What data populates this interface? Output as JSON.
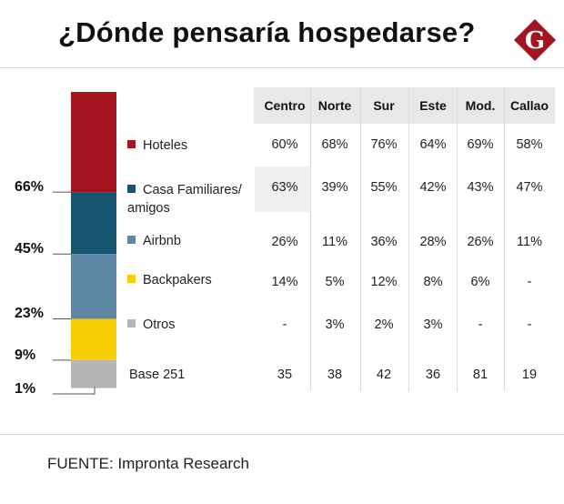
{
  "title": "¿Dónde pensaría hospedarse?",
  "logo_letter": "G",
  "source": "FUENTE: Impronta Research",
  "colors": {
    "hoteles": "#a3161f",
    "casa": "#165470",
    "airbnb": "#5e87a4",
    "backpakers": "#f7cd05",
    "otros": "#b5b5b5",
    "logo": "#a3161f"
  },
  "chart_data": {
    "type": "stacked-bar-with-table",
    "title": "¿Dónde pensaría hospedarse?",
    "stack": [
      {
        "name": "Hoteles",
        "value": 66,
        "color": "#a3161f"
      },
      {
        "name": "Casa Familiares/ amigos",
        "value": 45,
        "color": "#165470"
      },
      {
        "name": "Airbnb",
        "value": 23,
        "color": "#5e87a4"
      },
      {
        "name": "Backpakers",
        "value": 9,
        "color": "#f7cd05"
      },
      {
        "name": "Otros",
        "value": 1,
        "color": "#b5b5b5"
      }
    ],
    "stack_labels": [
      "66%",
      "45%",
      "23%",
      "9%",
      "1%"
    ],
    "legend": [
      {
        "name": "Hoteles",
        "lines": [
          "Hoteles"
        ],
        "color": "#a3161f"
      },
      {
        "name": "Casa Familiares/ amigos",
        "lines": [
          "Casa Familiares/",
          "amigos"
        ],
        "color": "#165470"
      },
      {
        "name": "Airbnb",
        "lines": [
          "Airbnb"
        ],
        "color": "#5e87a4"
      },
      {
        "name": "Backpakers",
        "lines": [
          "Backpakers"
        ],
        "color": "#f7cd05"
      },
      {
        "name": "Otros",
        "lines": [
          "Otros"
        ],
        "color": "#b5b5b5"
      }
    ],
    "columns": [
      "Centro",
      "Norte",
      "Sur",
      "Este",
      "Mod.",
      "Callao"
    ],
    "rows": [
      [
        "60%",
        "68%",
        "76%",
        "64%",
        "69%",
        "58%"
      ],
      [
        "63%",
        "39%",
        "55%",
        "42%",
        "43%",
        "47%"
      ],
      [
        "26%",
        "11%",
        "36%",
        "28%",
        "26%",
        "11%"
      ],
      [
        "14%",
        "5%",
        "12%",
        "8%",
        "6%",
        "-"
      ],
      [
        "-",
        "3%",
        "2%",
        "3%",
        "-",
        "-"
      ]
    ],
    "base_label": "Base 251",
    "base_values": [
      "35",
      "38",
      "42",
      "36",
      "81",
      "19"
    ]
  }
}
